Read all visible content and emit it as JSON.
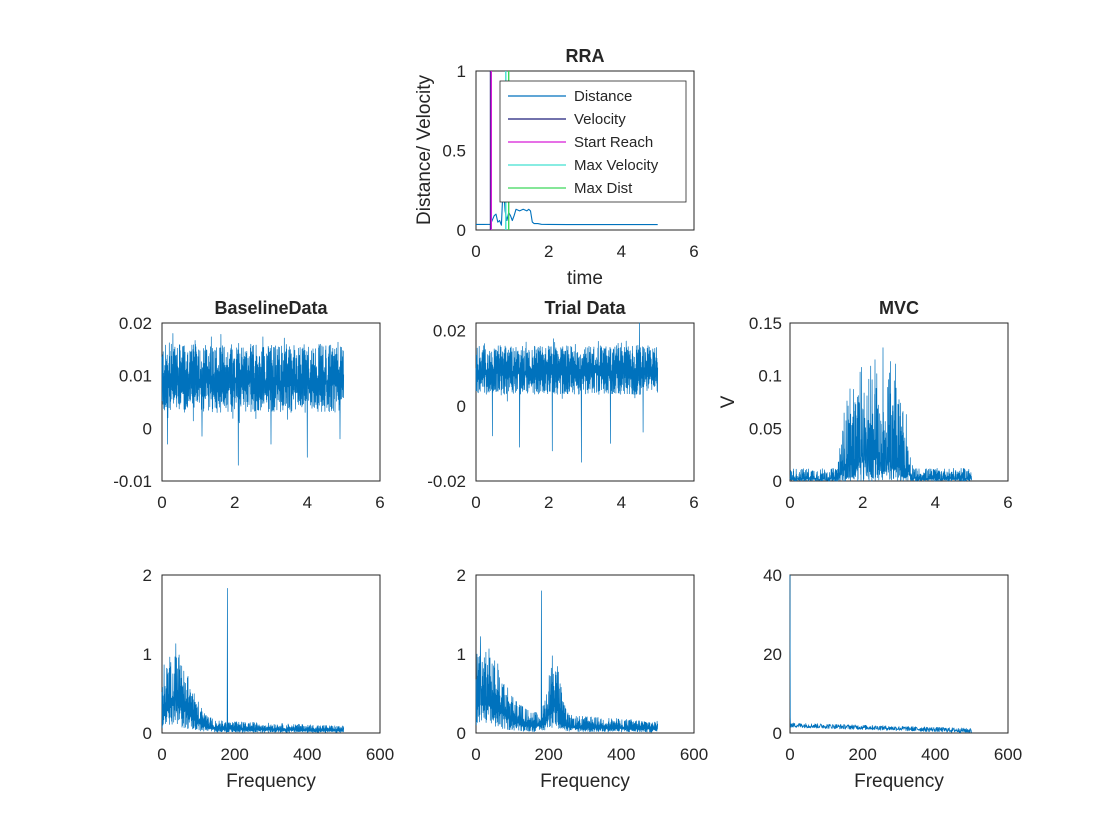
{
  "figure": {
    "background": "#ffffff"
  },
  "chart_data": [
    {
      "id": "rra",
      "type": "line",
      "title": "RRA",
      "xlabel": "time",
      "ylabel": "Distance/ Velocity",
      "xlim": [
        0,
        6
      ],
      "ylim": [
        0,
        1
      ],
      "xticks": [
        "0",
        "2",
        "4",
        "6"
      ],
      "yticks": [
        "0",
        "0.5",
        "1"
      ],
      "grid": false,
      "legend": "top-right",
      "series": [
        {
          "name": "Distance",
          "color": "#0072BD",
          "kind": "line",
          "x": [
            0,
            0.2,
            0.4,
            0.5,
            0.55,
            0.6,
            0.65,
            0.7,
            0.75,
            0.8,
            0.85,
            0.9,
            0.95,
            1.0,
            1.05,
            1.1,
            1.2,
            1.3,
            1.4,
            1.45,
            1.5,
            1.55,
            1.6,
            1.7,
            1.8,
            2.0,
            2.5,
            3.0,
            4.0,
            5.0
          ],
          "y": [
            0.035,
            0.035,
            0.036,
            0.09,
            0.1,
            0.05,
            0.06,
            0.03,
            0.3,
            0.12,
            0.06,
            0.11,
            0.09,
            0.06,
            0.09,
            0.13,
            0.12,
            0.13,
            0.12,
            0.13,
            0.12,
            0.05,
            0.04,
            0.04,
            0.036,
            0.035,
            0.034,
            0.034,
            0.034,
            0.034
          ]
        },
        {
          "name": "Velocity",
          "color": "#1F1F7A",
          "kind": "vline",
          "x": 0.4
        },
        {
          "name": "Start Reach",
          "color": "#D81BD8",
          "kind": "vline",
          "x": 0.42
        },
        {
          "name": "Max Velocity",
          "color": "#40E0D0",
          "kind": "vline",
          "x": 0.82
        },
        {
          "name": "Max Dist",
          "color": "#3CD65A",
          "kind": "vline",
          "x": 0.9
        }
      ]
    },
    {
      "id": "baseline",
      "type": "line",
      "title": "BaselineData",
      "xlabel": "",
      "ylabel": "",
      "xlim": [
        0,
        6
      ],
      "ylim": [
        -0.01,
        0.02
      ],
      "xticks": [
        "0",
        "2",
        "4",
        "6"
      ],
      "yticks": [
        "-0.01",
        "0",
        "0.01",
        "0.02"
      ],
      "series": [
        {
          "color": "#0072BD",
          "kind": "noise",
          "x_range": [
            0,
            5
          ],
          "mean": 0.009,
          "band": [
            0.003,
            0.016
          ],
          "spikes": [
            [
              0.15,
              -0.003
            ],
            [
              0.3,
              0.018
            ],
            [
              1.1,
              -0.0015
            ],
            [
              2.1,
              -0.007
            ],
            [
              3.0,
              -0.003
            ],
            [
              4.0,
              -0.0055
            ],
            [
              4.9,
              -0.002
            ]
          ]
        }
      ]
    },
    {
      "id": "trial",
      "type": "line",
      "title": "Trial Data",
      "xlabel": "",
      "ylabel": "",
      "xlim": [
        0,
        6
      ],
      "ylim": [
        -0.02,
        0.022
      ],
      "xticks": [
        "0",
        "2",
        "4",
        "6"
      ],
      "yticks": [
        "-0.02",
        "0",
        "0.02"
      ],
      "series": [
        {
          "color": "#0072BD",
          "kind": "noise",
          "x_range": [
            0,
            5
          ],
          "mean": 0.009,
          "band": [
            0.003,
            0.016
          ],
          "spikes": [
            [
              0.45,
              -0.008
            ],
            [
              1.2,
              -0.011
            ],
            [
              2.1,
              -0.012
            ],
            [
              2.9,
              -0.015
            ],
            [
              3.7,
              -0.01
            ],
            [
              4.6,
              -0.007
            ],
            [
              4.5,
              0.022
            ]
          ]
        }
      ]
    },
    {
      "id": "mvc",
      "type": "line",
      "title": "MVC",
      "xlabel": "",
      "ylabel": "V",
      "xlim": [
        0,
        6
      ],
      "ylim": [
        0,
        0.15
      ],
      "xticks": [
        "0",
        "2",
        "4",
        "6"
      ],
      "yticks": [
        "0",
        "0.05",
        "0.1",
        "0.15"
      ],
      "series": [
        {
          "color": "#0072BD",
          "kind": "burst",
          "x_range": [
            0,
            5
          ],
          "base": [
            0,
            0.012
          ],
          "burst_range": [
            1.3,
            3.4
          ],
          "burst_peak": 0.15
        }
      ]
    },
    {
      "id": "baseline_fft",
      "type": "line",
      "title": "",
      "xlabel": "Frequency",
      "ylabel": "",
      "xlim": [
        0,
        600
      ],
      "ylim": [
        0,
        2
      ],
      "xticks": [
        "0",
        "200",
        "400",
        "600"
      ],
      "yticks": [
        "0",
        "1",
        "2"
      ],
      "series": [
        {
          "color": "#0072BD",
          "kind": "spectrum",
          "x_range": [
            0,
            500
          ],
          "hump": {
            "center": 35,
            "width": 40,
            "height": 0.6
          },
          "floor": 0.12,
          "peaks": [
            [
              180,
              1.83
            ],
            [
              38,
              1.13
            ]
          ],
          "secondary": null
        }
      ]
    },
    {
      "id": "trial_fft",
      "type": "line",
      "title": "",
      "xlabel": "Frequency",
      "ylabel": "",
      "xlim": [
        0,
        600
      ],
      "ylim": [
        0,
        2
      ],
      "xticks": [
        "0",
        "200",
        "400",
        "600"
      ],
      "yticks": [
        "0",
        "1",
        "2"
      ],
      "series": [
        {
          "color": "#0072BD",
          "kind": "spectrum",
          "x_range": [
            0,
            500
          ],
          "hump": {
            "center": 20,
            "width": 50,
            "height": 0.55
          },
          "floor": 0.2,
          "peaks": [
            [
              180,
              1.8
            ],
            [
              12,
              1.22
            ]
          ],
          "secondary": {
            "center": 215,
            "width": 15,
            "height": 0.55
          }
        }
      ]
    },
    {
      "id": "mvc_fft",
      "type": "line",
      "title": "",
      "xlabel": "Frequency",
      "ylabel": "",
      "xlim": [
        0,
        600
      ],
      "ylim": [
        0,
        40
      ],
      "xticks": [
        "0",
        "200",
        "400",
        "600"
      ],
      "yticks": [
        "0",
        "20",
        "40"
      ],
      "series": [
        {
          "color": "#0072BD",
          "kind": "spectrum_low",
          "x_range": [
            0,
            500
          ],
          "start_peak": 40,
          "level_start": 2.0,
          "level_end": 0.6,
          "jitter": 1.2
        }
      ]
    }
  ]
}
